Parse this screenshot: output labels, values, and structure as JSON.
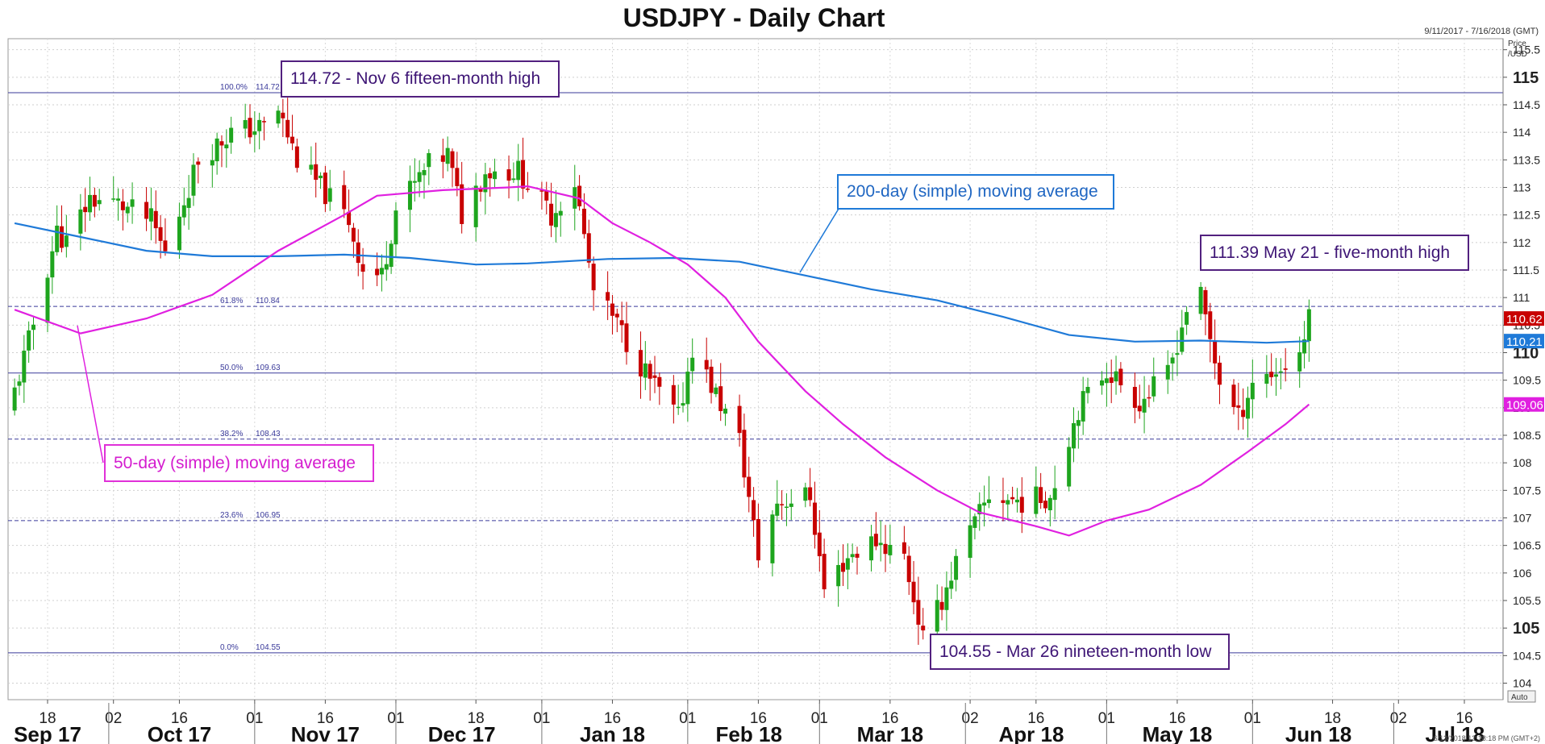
{
  "title": "USDJPY - Daily Chart",
  "date_range": "9/11/2017 - 7/16/2018 (GMT)",
  "price_axis_label": [
    "Price",
    "/USD"
  ],
  "auto_label": "Auto",
  "timestamp": "6/13/2018 12:18:18 PM (GMT+2)",
  "colors": {
    "up": "#1ea51e",
    "down": "#c80000",
    "ma50": "#e020e0",
    "ma200": "#1f7ad8",
    "fib": "#3a3a9a",
    "annotation_purple": "#52207f"
  },
  "annotations": {
    "high": "114.72 - Nov 6 fifteen-month high",
    "ma200": "200-day (simple) moving average",
    "may_high": "111.39 May 21 - five-month high",
    "ma50": "50-day (simple) moving average",
    "low": "104.55 - Mar 26 nineteen-month low"
  },
  "chart_data": {
    "type": "candlestick",
    "title": "USDJPY - Daily Chart",
    "ylim": [
      103.7,
      115.7
    ],
    "y_ticks": [
      104,
      104.5,
      105,
      105.5,
      106,
      106.5,
      107,
      107.5,
      108,
      108.5,
      109,
      109.5,
      110,
      110.5,
      111,
      111.5,
      112,
      112.5,
      113,
      113.5,
      114,
      114.5,
      115,
      115.5
    ],
    "y_tick_labels": [
      "104",
      "104.5",
      "105",
      "105.5",
      "106",
      "106.5",
      "107",
      "107.5",
      "108",
      "108.5",
      "109",
      "109.5",
      "110",
      "110.5",
      "111",
      "111.5",
      "112",
      "112.5",
      "113",
      "113.5",
      "114",
      "114.5",
      "115",
      "115.5"
    ],
    "y_major_ticks": [
      105,
      110,
      115
    ],
    "x_ticks": [
      {
        "date": "2017-09-18",
        "label": "18"
      },
      {
        "date": "2017-10-02",
        "label": "02"
      },
      {
        "date": "2017-10-16",
        "label": "16"
      },
      {
        "date": "2017-11-01",
        "label": "01"
      },
      {
        "date": "2017-11-16",
        "label": "16"
      },
      {
        "date": "2017-12-01",
        "label": "01"
      },
      {
        "date": "2017-12-18",
        "label": "18"
      },
      {
        "date": "2018-01-01",
        "label": "01"
      },
      {
        "date": "2018-01-16",
        "label": "16"
      },
      {
        "date": "2018-02-01",
        "label": "01"
      },
      {
        "date": "2018-02-16",
        "label": "16"
      },
      {
        "date": "2018-03-01",
        "label": "01"
      },
      {
        "date": "2018-03-16",
        "label": "16"
      },
      {
        "date": "2018-04-02",
        "label": "02"
      },
      {
        "date": "2018-04-16",
        "label": "16"
      },
      {
        "date": "2018-05-01",
        "label": "01"
      },
      {
        "date": "2018-05-16",
        "label": "16"
      },
      {
        "date": "2018-06-01",
        "label": "01"
      },
      {
        "date": "2018-06-18",
        "label": "18"
      },
      {
        "date": "2018-07-02",
        "label": "02"
      },
      {
        "date": "2018-07-16",
        "label": "16"
      }
    ],
    "months": [
      {
        "label": "Sep 17",
        "center": "2017-09-18"
      },
      {
        "label": "Oct 17",
        "center": "2017-10-16"
      },
      {
        "label": "Nov 17",
        "center": "2017-11-16"
      },
      {
        "label": "Dec 17",
        "center": "2017-12-15"
      },
      {
        "label": "Jan 18",
        "center": "2018-01-16"
      },
      {
        "label": "Feb 18",
        "center": "2018-02-14"
      },
      {
        "label": "Mar 18",
        "center": "2018-03-16"
      },
      {
        "label": "Apr 18",
        "center": "2018-04-15"
      },
      {
        "label": "May 18",
        "center": "2018-05-16"
      },
      {
        "label": "Jun 18",
        "center": "2018-06-15"
      },
      {
        "label": "Jul 18",
        "center": "2018-07-14"
      }
    ],
    "month_starts": [
      "2017-10-01",
      "2017-11-01",
      "2017-12-01",
      "2018-01-01",
      "2018-02-01",
      "2018-03-01",
      "2018-04-01",
      "2018-05-01",
      "2018-06-01",
      "2018-07-01"
    ],
    "fib_levels": [
      {
        "label": "100.0%",
        "price": 114.72,
        "price_label": "114.72"
      },
      {
        "label": "61.8%",
        "price": 110.84,
        "price_label": "110.84"
      },
      {
        "label": "50.0%",
        "price": 109.63,
        "price_label": "109.63"
      },
      {
        "label": "38.2%",
        "price": 108.43,
        "price_label": "108.43"
      },
      {
        "label": "23.6%",
        "price": 106.95,
        "price_label": "106.95"
      },
      {
        "label": "0.0%",
        "price": 104.55,
        "price_label": "104.55"
      }
    ],
    "last_price": {
      "value": 110.62,
      "label": "110.62"
    },
    "ma200_last": {
      "value": 110.21,
      "label": "110.21"
    },
    "ma50_last": {
      "value": 109.06,
      "label": "109.06"
    },
    "close_path": [
      [
        "2017-09-11",
        109.3
      ],
      [
        "2017-09-14",
        110.2
      ],
      [
        "2017-09-20",
        112.2
      ],
      [
        "2017-09-22",
        112.0
      ],
      [
        "2017-09-27",
        112.8
      ],
      [
        "2017-10-03",
        112.7
      ],
      [
        "2017-10-10",
        112.4
      ],
      [
        "2017-10-13",
        111.8
      ],
      [
        "2017-10-20",
        113.5
      ],
      [
        "2017-10-27",
        114.0
      ],
      [
        "2017-11-03",
        114.1
      ],
      [
        "2017-11-06",
        114.4
      ],
      [
        "2017-11-10",
        113.5
      ],
      [
        "2017-11-16",
        112.9
      ],
      [
        "2017-11-21",
        112.4
      ],
      [
        "2017-11-24",
        111.5
      ],
      [
        "2017-11-28",
        111.4
      ],
      [
        "2017-12-01",
        112.6
      ],
      [
        "2017-12-08",
        113.4
      ],
      [
        "2017-12-12",
        113.6
      ],
      [
        "2017-12-15",
        112.5
      ],
      [
        "2017-12-20",
        113.3
      ],
      [
        "2017-12-27",
        113.3
      ],
      [
        "2018-01-03",
        112.5
      ],
      [
        "2018-01-08",
        113.1
      ],
      [
        "2018-01-12",
        111.1
      ],
      [
        "2018-01-17",
        110.5
      ],
      [
        "2018-01-24",
        109.5
      ],
      [
        "2018-01-30",
        108.8
      ],
      [
        "2018-02-02",
        110.1
      ],
      [
        "2018-02-06",
        109.4
      ],
      [
        "2018-02-12",
        108.4
      ],
      [
        "2018-02-16",
        106.3
      ],
      [
        "2018-02-20",
        107.3
      ],
      [
        "2018-02-27",
        107.4
      ],
      [
        "2018-03-02",
        105.7
      ],
      [
        "2018-03-07",
        106.3
      ],
      [
        "2018-03-13",
        106.6
      ],
      [
        "2018-03-19",
        106.3
      ],
      [
        "2018-03-23",
        104.8
      ],
      [
        "2018-03-26",
        105.3
      ],
      [
        "2018-03-30",
        106.2
      ],
      [
        "2018-04-06",
        107.4
      ],
      [
        "2018-04-13",
        107.3
      ],
      [
        "2018-04-19",
        107.4
      ],
      [
        "2018-04-25",
        109.0
      ],
      [
        "2018-05-01",
        109.7
      ],
      [
        "2018-05-08",
        109.1
      ],
      [
        "2018-05-14",
        109.6
      ],
      [
        "2018-05-18",
        110.8
      ],
      [
        "2018-05-21",
        111.0
      ],
      [
        "2018-05-25",
        109.5
      ],
      [
        "2018-05-29",
        108.8
      ],
      [
        "2018-06-01",
        109.5
      ],
      [
        "2018-06-07",
        109.7
      ],
      [
        "2018-06-11",
        110.0
      ],
      [
        "2018-06-13",
        110.6
      ]
    ],
    "ma50": [
      [
        "2017-09-11",
        110.78
      ],
      [
        "2017-09-25",
        110.35
      ],
      [
        "2017-10-09",
        110.62
      ],
      [
        "2017-10-23",
        111.05
      ],
      [
        "2017-11-06",
        111.85
      ],
      [
        "2017-11-20",
        112.5
      ],
      [
        "2017-11-27",
        112.85
      ],
      [
        "2017-12-11",
        112.95
      ],
      [
        "2017-12-25",
        113.0
      ],
      [
        "2017-12-29",
        113.02
      ],
      [
        "2018-01-09",
        112.8
      ],
      [
        "2018-01-16",
        112.35
      ],
      [
        "2018-01-24",
        112.0
      ],
      [
        "2018-02-01",
        111.6
      ],
      [
        "2018-02-09",
        111.0
      ],
      [
        "2018-02-16",
        110.2
      ],
      [
        "2018-02-26",
        109.3
      ],
      [
        "2018-03-06",
        108.7
      ],
      [
        "2018-03-15",
        108.1
      ],
      [
        "2018-03-26",
        107.5
      ],
      [
        "2018-04-04",
        107.1
      ],
      [
        "2018-04-16",
        106.85
      ],
      [
        "2018-04-23",
        106.68
      ],
      [
        "2018-05-01",
        106.95
      ],
      [
        "2018-05-10",
        107.15
      ],
      [
        "2018-05-21",
        107.6
      ],
      [
        "2018-05-31",
        108.2
      ],
      [
        "2018-06-08",
        108.7
      ],
      [
        "2018-06-13",
        109.06
      ]
    ],
    "ma200": [
      [
        "2017-09-11",
        112.35
      ],
      [
        "2017-09-25",
        112.1
      ],
      [
        "2017-10-09",
        111.85
      ],
      [
        "2017-10-23",
        111.75
      ],
      [
        "2017-11-06",
        111.75
      ],
      [
        "2017-11-20",
        111.78
      ],
      [
        "2017-12-04",
        111.72
      ],
      [
        "2017-12-18",
        111.6
      ],
      [
        "2017-12-29",
        111.62
      ],
      [
        "2018-01-15",
        111.7
      ],
      [
        "2018-01-29",
        111.72
      ],
      [
        "2018-02-12",
        111.65
      ],
      [
        "2018-02-26",
        111.4
      ],
      [
        "2018-03-12",
        111.15
      ],
      [
        "2018-03-26",
        110.95
      ],
      [
        "2018-04-09",
        110.65
      ],
      [
        "2018-04-23",
        110.32
      ],
      [
        "2018-05-07",
        110.2
      ],
      [
        "2018-05-21",
        110.22
      ],
      [
        "2018-06-04",
        110.18
      ],
      [
        "2018-06-13",
        110.21
      ]
    ]
  }
}
